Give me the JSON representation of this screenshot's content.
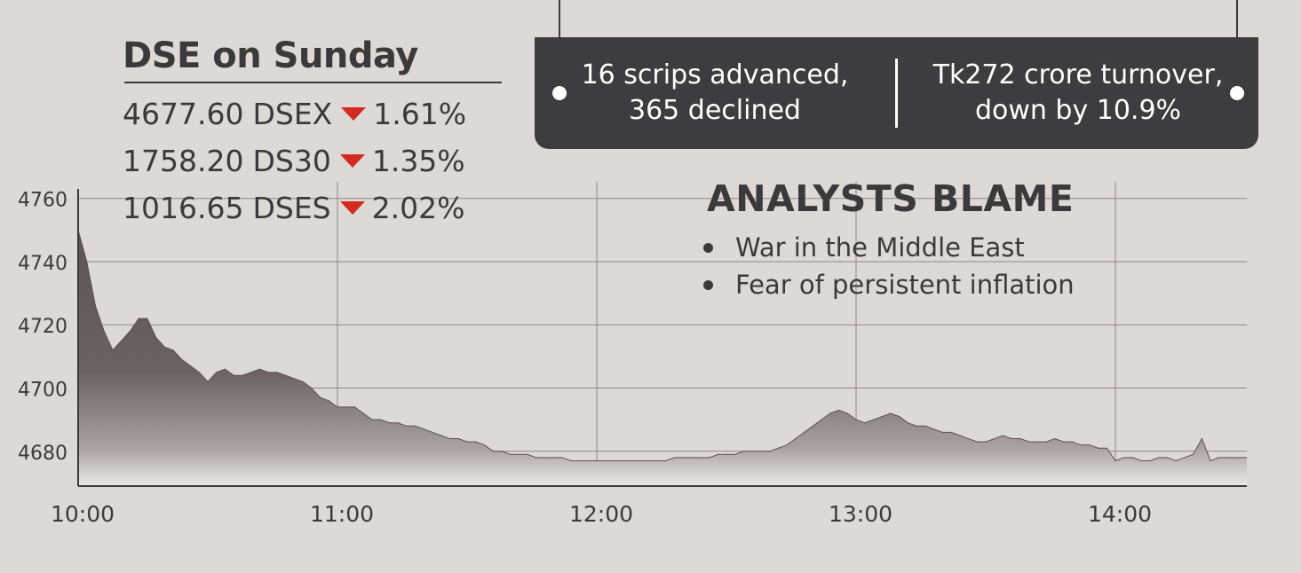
{
  "header": {
    "title": "DSE on Sunday",
    "indices": [
      {
        "value": "4677.60",
        "name": "DSEX",
        "change": "1.61%"
      },
      {
        "value": "1758.20",
        "name": "DS30",
        "change": "1.35%"
      },
      {
        "value": "1016.65",
        "name": "DSES",
        "change": "2.02%"
      }
    ]
  },
  "info_box": {
    "advanced_line1": "16 scrips advanced,",
    "advanced_line2": "365 declined",
    "turnover_line1": "Tk272 crore turnover,",
    "turnover_line2": "down by 10.9%"
  },
  "analysts": {
    "title": "ANALYSTS BLAME",
    "reasons": [
      "War in the Middle East",
      "Fear of persistent inflation"
    ]
  },
  "colors": {
    "background": "#dcd9d6",
    "area_top": "#5e5655",
    "area_bottom": "#ebe9e8",
    "box": "#3d3c3e",
    "down_arrow": "#d42a1f",
    "text": "#3b3a3a"
  },
  "chart_data": {
    "type": "area",
    "title": "",
    "xlabel": "",
    "ylabel": "",
    "x_ticks": [
      "10:00",
      "11:00",
      "12:00",
      "13:00",
      "14:00"
    ],
    "y_ticks": [
      4680,
      4700,
      4720,
      4740,
      4760
    ],
    "ylim": [
      4669,
      4763
    ],
    "grid": true,
    "series": [
      {
        "name": "",
        "x": [
          "10:00",
          "10:02",
          "10:04",
          "10:06",
          "10:08",
          "10:10",
          "10:12",
          "10:14",
          "10:16",
          "10:18",
          "10:20",
          "10:22",
          "10:24",
          "10:26",
          "10:28",
          "10:30",
          "10:32",
          "10:34",
          "10:36",
          "10:38",
          "10:40",
          "10:42",
          "10:44",
          "10:46",
          "10:48",
          "10:50",
          "10:52",
          "10:54",
          "10:56",
          "10:58",
          "11:00",
          "11:02",
          "11:04",
          "11:06",
          "11:08",
          "11:10",
          "11:12",
          "11:14",
          "11:16",
          "11:18",
          "11:20",
          "11:22",
          "11:24",
          "11:26",
          "11:28",
          "11:30",
          "11:32",
          "11:34",
          "11:36",
          "11:38",
          "11:40",
          "11:42",
          "11:44",
          "11:46",
          "11:48",
          "11:50",
          "11:52",
          "11:54",
          "11:56",
          "11:58",
          "12:00",
          "12:02",
          "12:04",
          "12:06",
          "12:08",
          "12:10",
          "12:12",
          "12:14",
          "12:16",
          "12:18",
          "12:20",
          "12:22",
          "12:24",
          "12:26",
          "12:28",
          "12:30",
          "12:32",
          "12:34",
          "12:36",
          "12:38",
          "12:40",
          "12:42",
          "12:44",
          "12:46",
          "12:48",
          "12:50",
          "12:52",
          "12:54",
          "12:56",
          "12:58",
          "13:00",
          "13:02",
          "13:04",
          "13:06",
          "13:08",
          "13:10",
          "13:12",
          "13:14",
          "13:16",
          "13:18",
          "13:20",
          "13:22",
          "13:24",
          "13:26",
          "13:28",
          "13:30",
          "13:32",
          "13:34",
          "13:36",
          "13:38",
          "13:40",
          "13:42",
          "13:44",
          "13:46",
          "13:48",
          "13:50",
          "13:52",
          "13:54",
          "13:56",
          "13:58",
          "14:00",
          "14:02",
          "14:04",
          "14:06",
          "14:08",
          "14:10",
          "14:12",
          "14:14",
          "14:16",
          "14:18",
          "14:20",
          "14:22",
          "14:24",
          "14:26",
          "14:28",
          "14:30"
        ],
        "values": [
          4750,
          4740,
          4726,
          4718,
          4712,
          4715,
          4718,
          4722,
          4722,
          4716,
          4713,
          4712,
          4709,
          4707,
          4705,
          4702,
          4705,
          4706,
          4704,
          4704,
          4705,
          4706,
          4705,
          4705,
          4704,
          4703,
          4702,
          4700,
          4697,
          4696,
          4694,
          4694,
          4694,
          4692,
          4690,
          4690,
          4689,
          4689,
          4688,
          4688,
          4687,
          4686,
          4685,
          4684,
          4684,
          4683,
          4683,
          4682,
          4680,
          4680,
          4679,
          4679,
          4679,
          4678,
          4678,
          4678,
          4678,
          4677,
          4677,
          4677,
          4677,
          4677,
          4677,
          4677,
          4677,
          4677,
          4677,
          4677,
          4677,
          4678,
          4678,
          4678,
          4678,
          4678,
          4679,
          4679,
          4679,
          4680,
          4680,
          4680,
          4680,
          4681,
          4682,
          4684,
          4686,
          4688,
          4690,
          4692,
          4693,
          4692,
          4690,
          4689,
          4690,
          4691,
          4692,
          4691,
          4689,
          4688,
          4688,
          4687,
          4686,
          4686,
          4685,
          4684,
          4683,
          4683,
          4684,
          4685,
          4684,
          4684,
          4683,
          4683,
          4683,
          4684,
          4683,
          4683,
          4682,
          4682,
          4681,
          4681,
          4677,
          4678,
          4678,
          4677,
          4677,
          4678,
          4678,
          4677,
          4678,
          4679,
          4684,
          4677,
          4678,
          4678,
          4678,
          4678
        ]
      }
    ]
  }
}
